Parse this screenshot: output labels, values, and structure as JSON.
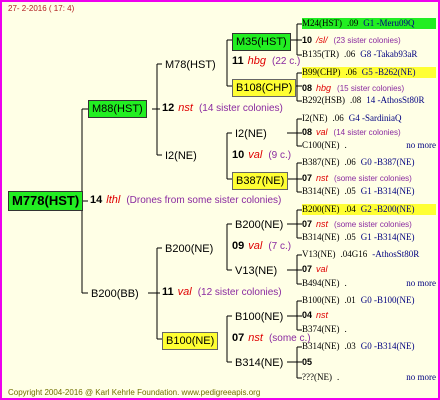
{
  "header": {
    "date": "27- 2-2016 ( 17: 4)"
  },
  "nodes": [
    "M778(HST)",
    "M88(HST)",
    "B200(BB)",
    "M78(HST)",
    "I2(NE)",
    "B200(NE)",
    "B100(NE)",
    "M35(HST)",
    "B108(CHP)",
    "I2(NE)",
    "B387(NE)",
    "B200(NE)",
    "V13(NE)",
    "B100(NE)",
    "B314(NE)"
  ],
  "matings": [
    {
      "number": "14",
      "race": "lthl",
      "note": "(Drones from some sister colonies)"
    },
    {
      "number": "12",
      "race": "nst",
      "note": "(14 sister colonies)"
    },
    {
      "number": "11",
      "race": "val",
      "note": "(12 sister colonies)"
    },
    {
      "number": "11",
      "race": "hbg",
      "note": "(22 c.)"
    },
    {
      "number": "10",
      "race": "val",
      "note": "(9 c.)"
    },
    {
      "number": "09",
      "race": "val",
      "note": "(7 c.)"
    },
    {
      "number": "07",
      "race": "nst",
      "note": "(some c.)"
    },
    {
      "number": "10",
      "race": "/sl/",
      "note": "(23 sister colonies)"
    },
    {
      "number": "08",
      "race": "hbg",
      "note": "(15 sister colonies)"
    },
    {
      "number": "08",
      "race": "val",
      "note": "(14 sister colonies)"
    },
    {
      "number": "07",
      "race": "nst",
      "note": "(some sister colonies)"
    },
    {
      "number": "07",
      "race": "nst",
      "note": "(some sister colonies)"
    },
    {
      "number": "07",
      "race": "val"
    },
    {
      "number": "04",
      "race": "nst"
    },
    {
      "number": "05"
    }
  ],
  "ancestors": [
    {
      "id": "M24(HST)",
      "score": ".09",
      "info": "G1 -Meru09Q"
    },
    {
      "id": "B135(TR)",
      "score": ".06",
      "info": "G8 -Takab93aR"
    },
    {
      "id": "B99(CHP)",
      "score": ".06",
      "info": "G5 -B262(NE)"
    },
    {
      "id": "B292(HSB)",
      "score": ".08",
      "info": "14 -AthosSt80R"
    },
    {
      "id": "I2(NE)",
      "score": ".06",
      "info": "G4 -SardiniaQ"
    },
    {
      "id": "C100(NE)",
      "score": ".",
      "info": "no more"
    },
    {
      "id": "B387(NE)",
      "score": ".06",
      "info": "G0 -B387(NE)"
    },
    {
      "id": "B314(NE)",
      "score": ".05",
      "info": "G1 -B314(NE)"
    },
    {
      "id": "B200(NE)",
      "score": ".04",
      "info": "G2 -B200(NE)"
    },
    {
      "id": "B314(NE)",
      "score": ".05",
      "info": "G1 -B314(NE)"
    },
    {
      "id": "V13(NE)",
      "score": ".04G16",
      "info": "-AthosSt80R"
    },
    {
      "id": "B494(NE)",
      "score": ".",
      "info": "no more"
    },
    {
      "id": "B100(NE)",
      "score": ".01",
      "info": "G0 -B100(NE)"
    },
    {
      "id": "B374(NE)",
      "score": "."
    },
    {
      "id": "B314(NE)",
      "score": ".03",
      "info": "G0 -B314(NE)"
    },
    {
      "id": "???(NE)",
      "score": ".",
      "info": "no more"
    }
  ],
  "footer": {
    "copyright": "Copyright 2004-2016 @ Karl Kehrle Foundation.   www.pedigreeapis.org"
  }
}
